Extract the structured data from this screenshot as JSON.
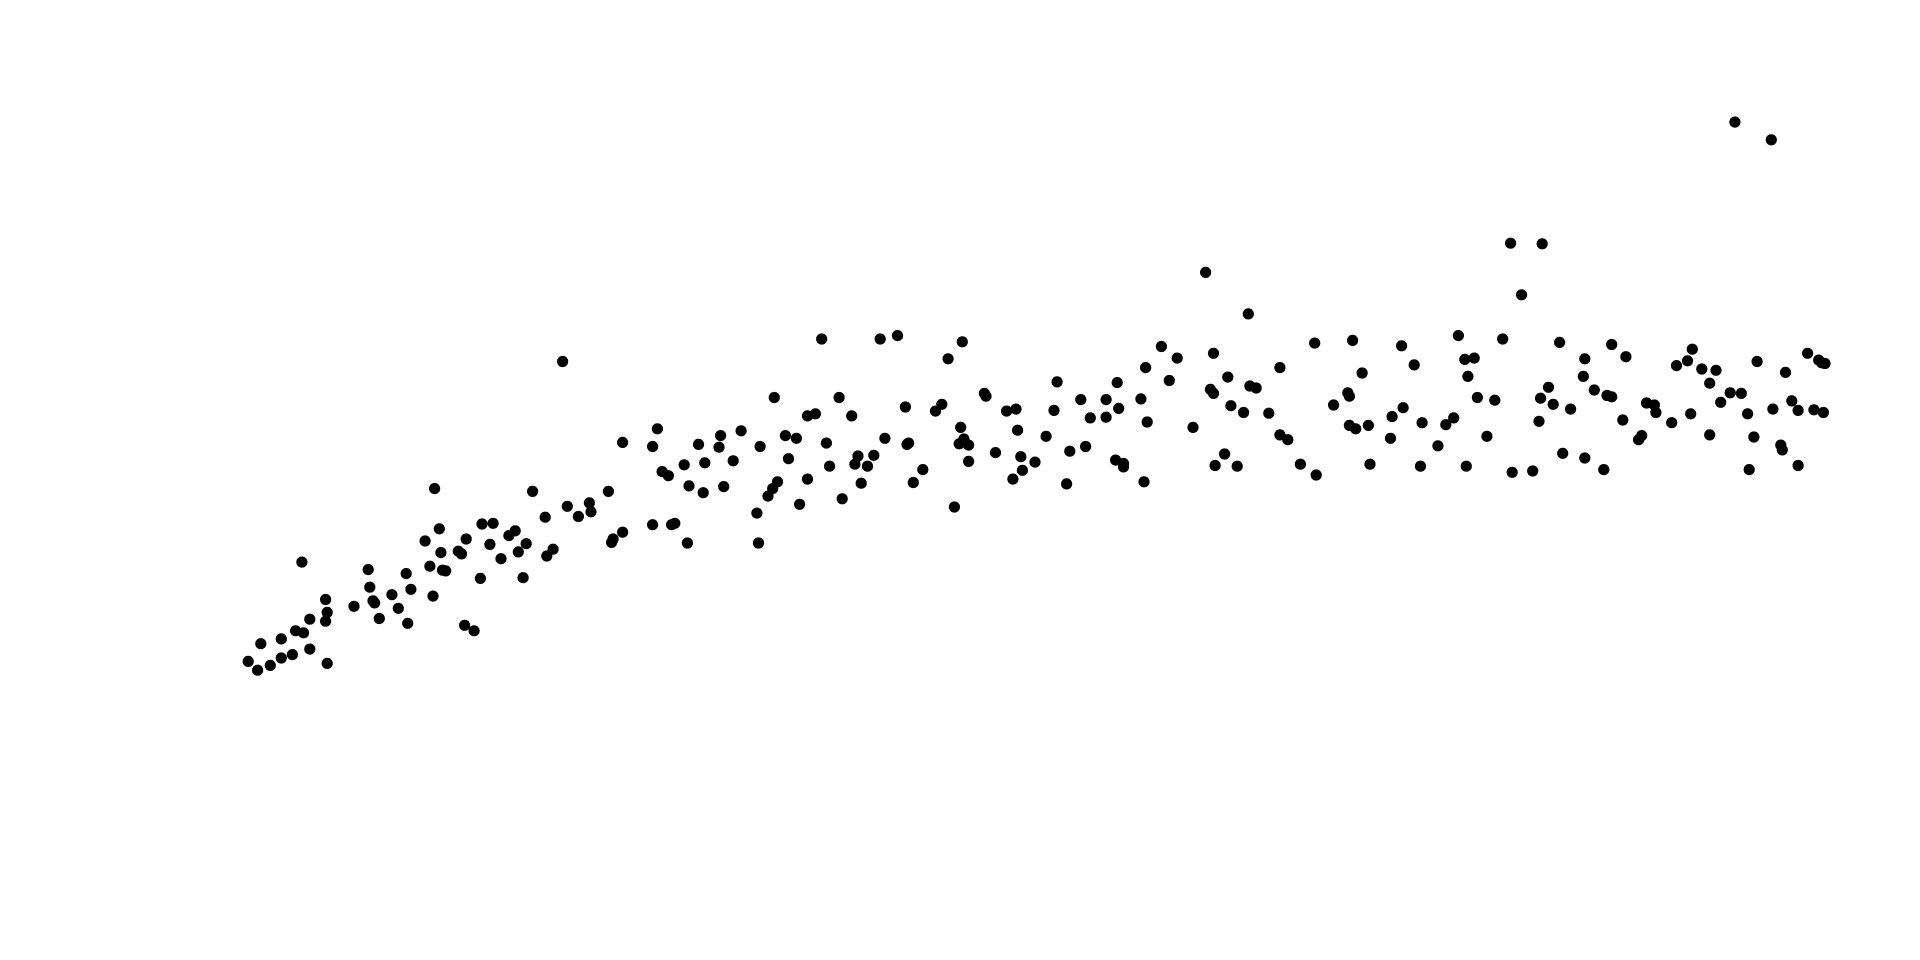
{
  "chart_data": {
    "type": "scatter",
    "title": "",
    "xlabel": "",
    "ylabel": "",
    "xlim": [
      0,
      100
    ],
    "ylim": [
      0,
      100
    ],
    "grid": false,
    "axes_visible": false,
    "legend": "none",
    "marker_color": "#000000",
    "series": [
      {
        "points": [
          [
            0.2,
            12.3
          ],
          [
            0.8,
            11.0
          ],
          [
            1.0,
            14.9
          ],
          [
            2.3,
            15.6
          ],
          [
            2.3,
            12.8
          ],
          [
            3.2,
            16.8
          ],
          [
            3.7,
            16.5
          ],
          [
            4.1,
            14.1
          ],
          [
            4.1,
            18.5
          ],
          [
            5.1,
            18.2
          ],
          [
            5.1,
            21.4
          ],
          [
            5.2,
            19.5
          ],
          [
            5.2,
            12.0
          ],
          [
            7.8,
            25.8
          ],
          [
            7.9,
            23.2
          ],
          [
            8.1,
            21.2
          ],
          [
            8.2,
            20.9
          ],
          [
            9.3,
            22.1
          ],
          [
            10.2,
            25.2
          ],
          [
            10.3,
            17.9
          ],
          [
            10.5,
            22.9
          ],
          [
            11.4,
            30.0
          ],
          [
            11.7,
            26.3
          ],
          [
            11.9,
            21.9
          ],
          [
            12.3,
            31.8
          ],
          [
            12.4,
            28.3
          ],
          [
            12.5,
            25.7
          ],
          [
            12.7,
            25.6
          ],
          [
            13.5,
            28.5
          ],
          [
            13.7,
            28.1
          ],
          [
            13.9,
            17.6
          ],
          [
            14.0,
            30.3
          ],
          [
            14.5,
            16.8
          ],
          [
            15.0,
            32.5
          ],
          [
            15.7,
            32.6
          ],
          [
            16.2,
            27.4
          ],
          [
            16.7,
            30.8
          ],
          [
            17.1,
            31.5
          ],
          [
            17.3,
            28.4
          ],
          [
            17.8,
            29.6
          ],
          [
            18.2,
            37.3
          ],
          [
            19.0,
            33.5
          ],
          [
            19.5,
            28.8
          ],
          [
            20.4,
            35.1
          ],
          [
            21.8,
            35.6
          ],
          [
            21.9,
            34.3
          ],
          [
            23.0,
            37.3
          ],
          [
            23.2,
            29.8
          ],
          [
            23.3,
            30.3
          ],
          [
            23.9,
            31.3
          ],
          [
            25.8,
            32.4
          ],
          [
            25.8,
            43.9
          ],
          [
            26.4,
            40.2
          ],
          [
            26.8,
            39.6
          ],
          [
            27.2,
            32.6
          ],
          [
            27.8,
            41.2
          ],
          [
            28.0,
            29.7
          ],
          [
            29.0,
            37.1
          ],
          [
            29.1,
            41.5
          ],
          [
            30.0,
            43.8
          ],
          [
            30.1,
            45.5
          ],
          [
            30.9,
            41.8
          ],
          [
            32.4,
            34.1
          ],
          [
            32.5,
            29.7
          ],
          [
            33.4,
            37.7
          ],
          [
            33.5,
            51.1
          ],
          [
            33.7,
            38.7
          ],
          [
            34.2,
            45.5
          ],
          [
            34.4,
            42.1
          ],
          [
            34.9,
            45.1
          ],
          [
            35.1,
            35.4
          ],
          [
            35.6,
            48.4
          ],
          [
            36.5,
            59.7
          ],
          [
            36.8,
            44.4
          ],
          [
            37.6,
            51.1
          ],
          [
            37.8,
            36.2
          ],
          [
            38.4,
            48.4
          ],
          [
            38.6,
            41.3
          ],
          [
            38.8,
            42.5
          ],
          [
            39.4,
            41.0
          ],
          [
            39.8,
            42.6
          ],
          [
            40.5,
            45.1
          ],
          [
            41.8,
            49.7
          ],
          [
            41.9,
            44.2
          ],
          [
            42.0,
            44.4
          ],
          [
            42.3,
            38.6
          ],
          [
            44.1,
            50.1
          ],
          [
            44.9,
            35.0
          ],
          [
            45.2,
            44.3
          ],
          [
            45.3,
            46.7
          ],
          [
            45.4,
            59.3
          ],
          [
            45.5,
            45.0
          ],
          [
            45.8,
            41.7
          ],
          [
            46.8,
            51.7
          ],
          [
            46.9,
            51.3
          ],
          [
            47.5,
            43.0
          ],
          [
            48.2,
            49.1
          ],
          [
            48.6,
            39.1
          ],
          [
            48.9,
            46.3
          ],
          [
            49.1,
            42.4
          ],
          [
            50.7,
            45.4
          ],
          [
            51.2,
            49.2
          ],
          [
            51.4,
            53.4
          ],
          [
            52.0,
            38.4
          ],
          [
            52.2,
            43.2
          ],
          [
            53.5,
            48.1
          ],
          [
            54.5,
            48.2
          ],
          [
            54.5,
            50.8
          ],
          [
            55.1,
            41.9
          ],
          [
            55.2,
            53.3
          ],
          [
            55.6,
            41.4
          ],
          [
            56.7,
            50.9
          ],
          [
            56.9,
            38.7
          ],
          [
            57.1,
            47.5
          ],
          [
            58.5,
            53.6
          ],
          [
            60.8,
            69.5
          ],
          [
            61.1,
            52.3
          ],
          [
            61.3,
            51.7
          ],
          [
            62.0,
            42.8
          ],
          [
            62.8,
            41.0
          ],
          [
            63.2,
            48.9
          ],
          [
            63.5,
            63.4
          ],
          [
            63.6,
            52.8
          ],
          [
            64.0,
            52.5
          ],
          [
            65.5,
            45.6
          ],
          [
            67.7,
            59.1
          ],
          [
            67.8,
            39.7
          ],
          [
            69.9,
            47.0
          ],
          [
            69.9,
            51.3
          ],
          [
            70.3,
            46.5
          ],
          [
            70.7,
            54.7
          ],
          [
            71.1,
            47.0
          ],
          [
            72.5,
            45.1
          ],
          [
            72.6,
            48.3
          ],
          [
            73.2,
            58.7
          ],
          [
            74.4,
            41.0
          ],
          [
            74.5,
            47.4
          ],
          [
            75.5,
            44.0
          ],
          [
            76.0,
            47.1
          ],
          [
            77.2,
            56.7
          ],
          [
            77.4,
            54.2
          ],
          [
            77.8,
            56.9
          ],
          [
            78.6,
            45.4
          ],
          [
            79.6,
            59.7
          ],
          [
            80.1,
            73.8
          ],
          [
            80.2,
            40.1
          ],
          [
            81.9,
            47.6
          ],
          [
            82.0,
            51.0
          ],
          [
            82.1,
            73.7
          ],
          [
            82.5,
            52.6
          ],
          [
            82.8,
            50.1
          ],
          [
            83.2,
            59.2
          ],
          [
            83.4,
            42.9
          ],
          [
            84.8,
            42.2
          ],
          [
            84.8,
            56.8
          ],
          [
            85.4,
            52.2
          ],
          [
            86.5,
            51.2
          ],
          [
            86.5,
            58.9
          ],
          [
            87.2,
            47.8
          ],
          [
            88.2,
            44.9
          ],
          [
            88.7,
            50.3
          ],
          [
            89.3,
            48.9
          ],
          [
            90.6,
            55.8
          ],
          [
            91.3,
            56.5
          ],
          [
            91.5,
            48.7
          ],
          [
            92.7,
            53.2
          ],
          [
            92.7,
            45.6
          ],
          [
            93.1,
            55.1
          ],
          [
            94.3,
            91.6
          ],
          [
            94.7,
            51.7
          ],
          [
            95.1,
            48.7
          ],
          [
            95.2,
            40.5
          ],
          [
            95.5,
            45.3
          ],
          [
            96.6,
            89.0
          ],
          [
            96.7,
            49.4
          ],
          [
            97.2,
            44.1
          ],
          [
            97.3,
            43.4
          ],
          [
            97.5,
            54.8
          ],
          [
            98.3,
            41.1
          ],
          [
            98.3,
            49.2
          ],
          [
            99.3,
            49.3
          ],
          [
            99.8,
            56.2
          ],
          [
            99.9,
            48.9
          ],
          [
            100.0,
            56.1
          ],
          [
            3.6,
            26.9
          ],
          [
            12.0,
            37.7
          ],
          [
            20.1,
            56.4
          ],
          [
            26.1,
            46.5
          ],
          [
            31.4,
            46.2
          ],
          [
            40.2,
            59.7
          ],
          [
            41.3,
            60.2
          ],
          [
            44.5,
            56.8
          ],
          [
            57.0,
            55.5
          ],
          [
            58.0,
            58.6
          ],
          [
            59.0,
            56.9
          ],
          [
            61.3,
            57.6
          ],
          [
            62.2,
            54.1
          ],
          [
            65.5,
            55.5
          ],
          [
            70.1,
            59.5
          ],
          [
            74.0,
            55.9
          ],
          [
            76.8,
            60.2
          ],
          [
            80.8,
            66.2
          ],
          [
            84.7,
            54.2
          ],
          [
            87.4,
            57.1
          ],
          [
            91.6,
            58.2
          ],
          [
            92.2,
            55.3
          ],
          [
            95.7,
            56.4
          ],
          [
            98.9,
            57.6
          ],
          [
            99.6,
            56.6
          ],
          [
            23.9,
            44.5
          ],
          [
            28.7,
            44.2
          ],
          [
            32.6,
            43.9
          ],
          [
            36.1,
            48.7
          ],
          [
            43.7,
            49.1
          ],
          [
            48.8,
            49.4
          ],
          [
            55.3,
            49.5
          ],
          [
            62.4,
            49.9
          ],
          [
            68.9,
            50.0
          ],
          [
            73.3,
            49.6
          ],
          [
            79.1,
            50.7
          ],
          [
            83.9,
            49.4
          ],
          [
            89.2,
            50.0
          ],
          [
            93.4,
            50.4
          ],
          [
            97.9,
            50.6
          ],
          [
            28.1,
            38.1
          ],
          [
            35.6,
            39.1
          ],
          [
            42.9,
            40.5
          ],
          [
            49.2,
            40.4
          ],
          [
            55.6,
            40.9
          ],
          [
            61.4,
            41.1
          ],
          [
            66.8,
            41.3
          ],
          [
            71.2,
            41.3
          ],
          [
            77.3,
            41.0
          ],
          [
            81.5,
            40.3
          ],
          [
            86.0,
            40.5
          ],
          [
            6.9,
            20.4
          ],
          [
            15.5,
            29.5
          ],
          [
            21.1,
            33.6
          ],
          [
            37.0,
            41.0
          ],
          [
            45.8,
            44.1
          ],
          [
            53.2,
            43.9
          ],
          [
            64.8,
            48.8
          ],
          [
            76.5,
            48.1
          ],
          [
            90.3,
            47.4
          ],
          [
            14.9,
            24.5
          ],
          [
            30.3,
            38.0
          ],
          [
            52.9,
            50.8
          ],
          [
            69.8,
            51.8
          ],
          [
            86.2,
            51.4
          ],
          [
            3.0,
            13.3
          ],
          [
            9.7,
            20.1
          ],
          [
            19.1,
            27.8
          ],
          [
            33.1,
            36.6
          ],
          [
            50.0,
            41.6
          ],
          [
            66.0,
            44.9
          ],
          [
            88.4,
            45.5
          ],
          [
            1.6,
            11.7
          ],
          [
            8.5,
            18.6
          ],
          [
            17.6,
            24.6
          ],
          [
            27.0,
            32.4
          ],
          [
            39.0,
            38.5
          ],
          [
            60.0,
            46.7
          ],
          [
            78.0,
            51.1
          ],
          [
            94.0,
            51.8
          ]
        ]
      }
    ]
  }
}
